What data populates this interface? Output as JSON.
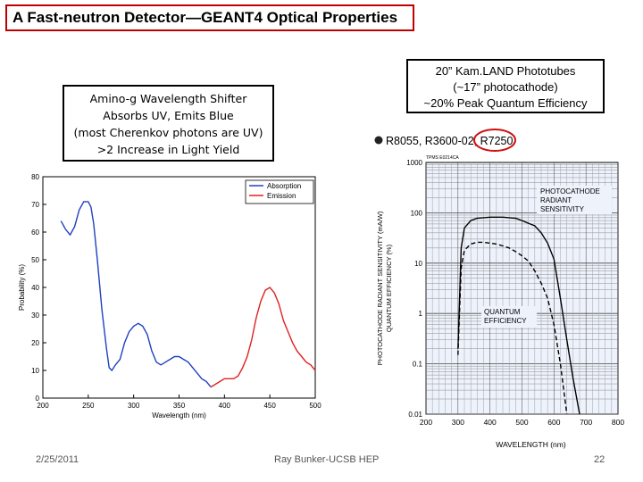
{
  "slide": {
    "title": "A Fast-neutron Detector—GEANT4 Optical Properties",
    "left_callout": [
      "Amino-g Wavelength Shifter",
      "Absorbs UV, Emits Blue",
      "(most Cherenkov photons are UV)",
      ">2 Increase in Light Yield"
    ],
    "right_callout": [
      "20” Kam.LAND Phototubes",
      "(~17” photocathode)",
      "~20% Peak Quantum Efficiency"
    ],
    "footer": {
      "date": "2/25/2011",
      "center": "Ray Bunker-UCSB HEP",
      "page": "22"
    }
  },
  "chart_data": [
    {
      "type": "line",
      "xlabel": "Wavelength (nm)",
      "ylabel": "Probability (%)",
      "xlim": [
        200,
        500
      ],
      "ylim": [
        0,
        80
      ],
      "xticks": [
        "200",
        "250",
        "300",
        "350",
        "400",
        "450",
        "500"
      ],
      "yticks": [
        "0",
        "10",
        "20",
        "30",
        "40",
        "50",
        "60",
        "70",
        "80"
      ],
      "legend_position": "top-right",
      "colors": {
        "absorption": "#2040c0",
        "emission": "#e02020"
      },
      "series": [
        {
          "name": "Absorption",
          "x": [
            220,
            225,
            230,
            235,
            240,
            245,
            250,
            253,
            256,
            260,
            265,
            270,
            273,
            276,
            278,
            280,
            285,
            290,
            295,
            300,
            305,
            310,
            315,
            320,
            325,
            330,
            335,
            340,
            345,
            350,
            355,
            360,
            365,
            370,
            375,
            380,
            385
          ],
          "y": [
            64,
            61,
            59,
            62,
            68,
            71,
            71,
            69,
            63,
            50,
            32,
            18,
            11,
            10,
            11,
            12,
            14,
            20,
            24,
            26,
            27,
            26,
            23,
            17,
            13,
            12,
            13,
            14,
            15,
            15,
            14,
            13,
            11,
            9,
            7,
            6,
            4
          ]
        },
        {
          "name": "Emission",
          "x": [
            385,
            390,
            395,
            400,
            405,
            410,
            415,
            420,
            425,
            430,
            435,
            440,
            445,
            450,
            455,
            460,
            465,
            470,
            475,
            480,
            485,
            490,
            495,
            500
          ],
          "y": [
            4,
            5,
            6,
            7,
            7,
            7,
            8,
            11,
            15,
            21,
            29,
            35,
            39,
            40,
            38,
            34,
            28,
            24,
            20,
            17,
            15,
            13,
            12,
            10
          ]
        }
      ]
    },
    {
      "type": "line",
      "header_label": "R8055, R3600-02, R7250",
      "figure_code": "TPMS E0214CA",
      "xlabel": "WAVELENGTH (nm)",
      "ylabel": "PHOTOCATHODE RADIANT SENSITIVITY (mA/W) QUANTUM EFFICIENCY (%)",
      "ylabel_lines": [
        "PHOTOCATHODE RADIANT SENSITIVITY (mA/W)",
        "QUANTUM EFFICIENCY (%)"
      ],
      "xlim": [
        200,
        800
      ],
      "ylim": [
        0.01,
        1000
      ],
      "y_scale": "log",
      "xticks": [
        "200",
        "300",
        "400",
        "500",
        "600",
        "700",
        "800"
      ],
      "yticks": [
        "1000",
        "100",
        "10",
        "1",
        "0.1",
        "0.01"
      ],
      "grid": true,
      "highlight_color": "#d01010",
      "annotations": [
        {
          "lines": [
            "PHOTOCATHODE",
            "RADIANT",
            "SENSITIVITY"
          ]
        },
        {
          "lines": [
            "QUANTUM",
            "EFFICIENCY"
          ]
        }
      ],
      "series": [
        {
          "name": "PHOTOCATHODE RADIANT SENSITIVITY",
          "x": [
            300,
            310,
            320,
            340,
            360,
            380,
            400,
            420,
            440,
            460,
            480,
            500,
            520,
            540,
            560,
            580,
            600,
            620,
            640,
            660,
            680
          ],
          "y": [
            0.2,
            20,
            50,
            70,
            78,
            80,
            82,
            82,
            82,
            80,
            78,
            70,
            62,
            55,
            40,
            25,
            12,
            2,
            0.3,
            0.05,
            0.01
          ]
        },
        {
          "name": "QUANTUM EFFICIENCY",
          "x": [
            300,
            310,
            320,
            340,
            360,
            380,
            400,
            420,
            440,
            460,
            480,
            500,
            520,
            540,
            560,
            580,
            600,
            620,
            640
          ],
          "y": [
            0.15,
            8,
            18,
            24,
            26,
            26,
            25,
            24,
            22,
            20,
            17,
            14,
            11,
            7,
            4,
            2,
            0.6,
            0.1,
            0.01
          ]
        }
      ]
    }
  ]
}
